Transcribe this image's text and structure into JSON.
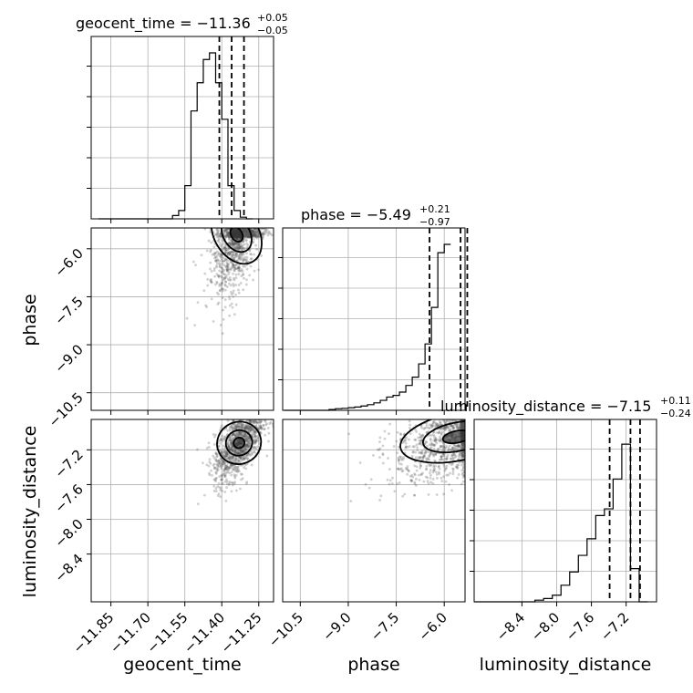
{
  "chart_data": {
    "type": "corner",
    "parameters": [
      "geocent_time",
      "phase",
      "luminosity_distance"
    ],
    "titles": [
      {
        "label": "geocent_time = −11.36",
        "plus": "+0.05",
        "minus": "−0.05"
      },
      {
        "label": "phase = −5.49",
        "plus": "+0.21",
        "minus": "−0.97"
      },
      {
        "label": "luminosity_distance = −7.15",
        "plus": "+0.11",
        "minus": "−0.24"
      }
    ],
    "axis_labels": {
      "x": [
        "geocent_time",
        "phase",
        "luminosity_distance"
      ],
      "y": [
        "phase",
        "luminosity_distance"
      ]
    },
    "ranges": [
      [
        -11.93,
        -11.19
      ],
      [
        -11.05,
        -5.35
      ],
      [
        -8.95,
        -6.85
      ]
    ],
    "ticks": {
      "geocent_time": [
        {
          "v": -11.85,
          "t": "−11.85"
        },
        {
          "v": -11.7,
          "t": "−11.70"
        },
        {
          "v": -11.55,
          "t": "−11.55"
        },
        {
          "v": -11.4,
          "t": "−11.40"
        },
        {
          "v": -11.25,
          "t": "−11.25"
        }
      ],
      "phase": [
        {
          "v": -10.5,
          "t": "−10.5"
        },
        {
          "v": -9.0,
          "t": "−9.0"
        },
        {
          "v": -7.5,
          "t": "−7.5"
        },
        {
          "v": -6.0,
          "t": "−6.0"
        }
      ],
      "luminosity_distance": [
        {
          "v": -8.4,
          "t": "−8.4"
        },
        {
          "v": -8.0,
          "t": "−8.0"
        },
        {
          "v": -7.6,
          "t": "−7.6"
        },
        {
          "v": -7.2,
          "t": "−7.2"
        }
      ]
    },
    "histograms": [
      {
        "param": "geocent_time",
        "bin_start": -11.9,
        "bin_width": 0.025,
        "counts": [
          0,
          0,
          0,
          0,
          0,
          0,
          0,
          0,
          0,
          0,
          0,
          0,
          0.02,
          0.05,
          0.2,
          0.65,
          0.82,
          0.96,
          1.0,
          0.82,
          0.6,
          0.2,
          0.05,
          0.01,
          0
        ],
        "quantiles": [
          -11.41,
          -11.36,
          -11.31
        ]
      },
      {
        "param": "phase",
        "bin_start": -11.0,
        "bin_width": 0.2,
        "counts": [
          0,
          0,
          0,
          0,
          0,
          0,
          0,
          0.005,
          0.01,
          0.012,
          0.016,
          0.02,
          0.026,
          0.034,
          0.045,
          0.06,
          0.08,
          0.09,
          0.11,
          0.15,
          0.2,
          0.28,
          0.4,
          0.62,
          0.95,
          1.0
        ],
        "quantiles": [
          -6.46,
          -5.49,
          -5.28
        ]
      },
      {
        "param": "luminosity_distance",
        "bin_start": -8.95,
        "bin_width": 0.1,
        "counts": [
          0,
          0,
          0,
          0,
          0,
          0,
          0,
          0.01,
          0.02,
          0.04,
          0.1,
          0.18,
          0.28,
          0.38,
          0.52,
          0.56,
          0.74,
          0.95,
          0.2,
          0
        ],
        "quantiles": [
          -7.39,
          -7.15,
          -7.04
        ]
      }
    ],
    "joint": [
      {
        "x": "geocent_time",
        "y": "phase",
        "center": [
          -11.34,
          -5.55
        ],
        "spread": [
          0.05,
          0.9
        ],
        "correlation": 0.55
      },
      {
        "x": "geocent_time",
        "y": "luminosity_distance",
        "center": [
          -11.33,
          -7.12
        ],
        "spread": [
          0.05,
          0.22
        ],
        "correlation": 0.6
      },
      {
        "x": "phase",
        "y": "luminosity_distance",
        "center": [
          -5.6,
          -7.05
        ],
        "spread": [
          1.0,
          0.25
        ],
        "correlation": 0.5
      }
    ],
    "grid": true
  }
}
